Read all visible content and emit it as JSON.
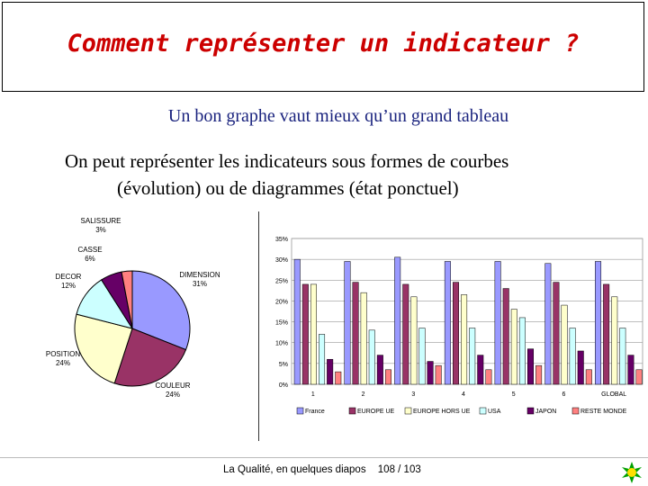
{
  "slide": {
    "title": "Comment représenter un indicateur ?",
    "subtitle": "Un bon graphe vaut mieux qu’un grand tableau",
    "body_line1": "On peut représenter les indicateurs sous formes de courbes",
    "body_line2": "(évolution) ou de diagrammes (état ponctuel)",
    "footer_text": "La Qualité, en quelques diapos",
    "page": "108 / 103"
  },
  "chart_data": [
    {
      "type": "pie",
      "slices": [
        {
          "label": "DIMENSION",
          "value": 31,
          "pct": "31%",
          "color": "#9999ff"
        },
        {
          "label": "COULEUR",
          "value": 24,
          "pct": "24%",
          "color": "#993366"
        },
        {
          "label": "POSITION",
          "value": 24,
          "pct": "24%",
          "color": "#ffffcc"
        },
        {
          "label": "DECOR",
          "value": 12,
          "pct": "12%",
          "color": "#ccffff"
        },
        {
          "label": "CASSE",
          "value": 6,
          "pct": "6%",
          "color": "#660066"
        },
        {
          "label": "SALISSURE",
          "value": 3,
          "pct": "3%",
          "color": "#ff8080"
        }
      ]
    },
    {
      "type": "bar",
      "categories": [
        "1",
        "2",
        "3",
        "4",
        "5",
        "6",
        "GLOBAL"
      ],
      "yticks": [
        "0%",
        "5%",
        "10%",
        "15%",
        "20%",
        "25%",
        "30%",
        "35%"
      ],
      "ylim": [
        0,
        35
      ],
      "grid": true,
      "legend_position": "bottom",
      "series": [
        {
          "name": "France",
          "color": "#9999ff",
          "values": [
            30,
            29.5,
            30.5,
            29.5,
            29.5,
            29,
            29.5
          ]
        },
        {
          "name": "EUROPE UE",
          "color": "#993366",
          "values": [
            24,
            24.5,
            24,
            24.5,
            23,
            24.5,
            24
          ]
        },
        {
          "name": "EUROPE HORS UE",
          "color": "#ffffcc",
          "values": [
            24,
            22,
            21,
            21.5,
            18,
            19,
            21
          ]
        },
        {
          "name": "USA",
          "color": "#ccffff",
          "values": [
            12,
            13,
            13.5,
            13.5,
            16,
            13.5,
            13.5
          ]
        },
        {
          "name": "JAPON",
          "color": "#660066",
          "values": [
            6,
            7,
            5.5,
            7,
            8.5,
            8,
            7
          ]
        },
        {
          "name": "RESTE MONDE",
          "color": "#ff8080",
          "values": [
            3,
            3.5,
            4.5,
            3.5,
            4.5,
            3.5,
            3.5
          ]
        }
      ]
    }
  ]
}
